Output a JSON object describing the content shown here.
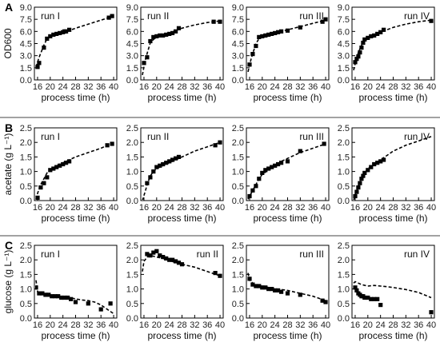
{
  "chart_data": [
    {
      "type": "scatter",
      "panel_letter": "A",
      "ylabel": "OD600",
      "xlabel": "process time (h)",
      "xlim": [
        15,
        41
      ],
      "ylim": [
        0,
        9
      ],
      "xticks": [
        16,
        20,
        24,
        28,
        32,
        36,
        40
      ],
      "yticks": [
        0,
        1.5,
        3,
        4.5,
        6,
        7.5,
        9
      ],
      "ytick_labels": [
        "0.0",
        "1.5",
        "3.0",
        "4.5",
        "6.0",
        "7.5",
        "9.0"
      ],
      "subplots": [
        {
          "title": "run I",
          "title_pos": "top-left",
          "measured": {
            "x": [
              16,
              16.5,
              18,
              19,
              20,
              21,
              22,
              23,
              24,
              24.5,
              25,
              26,
              38.5,
              39.5
            ],
            "y": [
              1.6,
              2.1,
              4.0,
              5.1,
              5.4,
              5.6,
              5.7,
              5.8,
              5.9,
              6.0,
              6.0,
              6.2,
              7.7,
              7.9
            ]
          },
          "model": {
            "x": [
              15.5,
              16.5,
              18,
              19,
              20,
              22,
              24,
              26,
              28,
              32,
              36,
              40
            ],
            "y": [
              1.6,
              2.8,
              4.3,
              5.1,
              5.4,
              5.6,
              5.8,
              6.1,
              6.4,
              6.9,
              7.4,
              7.9
            ]
          }
        },
        {
          "title": "run II",
          "title_pos": "top-left",
          "measured": {
            "x": [
              16,
              17,
              18,
              19,
              20,
              21,
              22,
              23,
              24,
              25,
              26,
              27,
              38,
              40
            ],
            "y": [
              2.1,
              2.8,
              4.8,
              5.3,
              5.4,
              5.5,
              5.5,
              5.6,
              5.7,
              5.8,
              6.0,
              6.4,
              7.2,
              7.2
            ]
          },
          "model": {
            "x": [
              15.5,
              16.5,
              18,
              19,
              20,
              22,
              24,
              26,
              28,
              32,
              36,
              40
            ],
            "y": [
              0.6,
              2.6,
              4.6,
              5.0,
              5.3,
              5.6,
              5.8,
              6.1,
              6.4,
              6.8,
              7.1,
              7.3
            ]
          }
        },
        {
          "title": "run III",
          "title_pos": "top-right",
          "measured": {
            "x": [
              16,
              17,
              18,
              19,
              20,
              21,
              22,
              23,
              24,
              25,
              26,
              28,
              32,
              39,
              40
            ],
            "y": [
              1.9,
              3.2,
              4.2,
              5.3,
              5.4,
              5.5,
              5.6,
              5.7,
              5.8,
              5.9,
              6.0,
              6.1,
              6.5,
              7.2,
              7.5
            ]
          },
          "model": {
            "x": [
              15.5,
              16.5,
              18,
              19,
              20,
              22,
              24,
              26,
              28,
              32,
              36,
              40
            ],
            "y": [
              1.0,
              2.6,
              4.5,
              5.1,
              5.4,
              5.6,
              5.8,
              6.0,
              6.2,
              6.6,
              7.0,
              7.4
            ]
          }
        },
        {
          "title": "run IV",
          "title_pos": "top-right",
          "measured": {
            "x": [
              16,
              16.5,
              17,
              17.5,
              18,
              18.5,
              19,
              20,
              21,
              22,
              23,
              24,
              25,
              40
            ],
            "y": [
              2.2,
              2.6,
              2.9,
              3.4,
              4.0,
              4.6,
              5.0,
              5.2,
              5.4,
              5.5,
              5.7,
              5.9,
              6.2,
              7.3
            ]
          },
          "model": {
            "x": [
              15.5,
              16,
              17,
              18,
              19,
              20,
              22,
              24,
              26,
              28,
              32,
              36,
              40
            ],
            "y": [
              1.2,
              2.0,
              3.4,
              4.3,
              4.8,
              5.2,
              5.6,
              5.9,
              6.2,
              6.5,
              6.9,
              7.2,
              7.4
            ]
          }
        }
      ]
    },
    {
      "type": "scatter",
      "panel_letter": "B",
      "ylabel": "acetate (g L⁻¹)",
      "xlabel": "process time (h)",
      "xlim": [
        15,
        41
      ],
      "ylim": [
        0,
        2.5
      ],
      "xticks": [
        16,
        20,
        24,
        28,
        32,
        36,
        40
      ],
      "yticks": [
        0,
        0.5,
        1,
        1.5,
        2,
        2.5
      ],
      "ytick_labels": [
        "0.0",
        "0.5",
        "1.0",
        "1.5",
        "2.0",
        "2.5"
      ],
      "subplots": [
        {
          "title": "run I",
          "title_pos": "top-left",
          "measured": {
            "x": [
              16,
              17,
              18,
              19,
              20,
              21,
              22,
              23,
              24,
              25,
              26,
              38,
              39.5
            ],
            "y": [
              0.1,
              0.45,
              0.6,
              0.8,
              1.05,
              1.1,
              1.15,
              1.2,
              1.25,
              1.3,
              1.35,
              1.9,
              1.95
            ]
          },
          "model": {
            "x": [
              15.5,
              16,
              17,
              18,
              19,
              20,
              22,
              24,
              26,
              28,
              32,
              36,
              40
            ],
            "y": [
              0.05,
              0.25,
              0.55,
              0.75,
              0.95,
              1.05,
              1.2,
              1.3,
              1.4,
              1.5,
              1.65,
              1.8,
              2.0
            ]
          }
        },
        {
          "title": "run II",
          "title_pos": "top-left",
          "measured": {
            "x": [
              17,
              18,
              19,
              20,
              21,
              22,
              23,
              24,
              25,
              26,
              27,
              38.5,
              40
            ],
            "y": [
              0.6,
              0.8,
              1.0,
              1.15,
              1.2,
              1.25,
              1.3,
              1.35,
              1.4,
              1.45,
              1.5,
              1.9,
              2.0
            ]
          },
          "model": {
            "x": [
              15.5,
              16.5,
              17,
              18,
              19,
              20,
              22,
              24,
              26,
              28,
              32,
              36,
              40
            ],
            "y": [
              0.0,
              0.35,
              0.55,
              0.85,
              1.0,
              1.1,
              1.2,
              1.3,
              1.4,
              1.5,
              1.7,
              1.85,
              2.0
            ]
          }
        },
        {
          "title": "run III",
          "title_pos": "top-right",
          "measured": {
            "x": [
              16,
              17,
              18,
              19,
              20,
              21,
              22,
              23,
              24,
              25,
              26,
              28,
              32,
              39.5
            ],
            "y": [
              0.15,
              0.35,
              0.5,
              0.75,
              0.95,
              1.05,
              1.1,
              1.15,
              1.2,
              1.25,
              1.3,
              1.35,
              1.7,
              1.95
            ]
          },
          "model": {
            "x": [
              15.5,
              16,
              17,
              18,
              19,
              20,
              22,
              24,
              26,
              28,
              32,
              36,
              40
            ],
            "y": [
              0.05,
              0.15,
              0.35,
              0.55,
              0.75,
              0.9,
              1.05,
              1.2,
              1.35,
              1.45,
              1.65,
              1.8,
              1.95
            ]
          }
        },
        {
          "title": "run IV",
          "title_pos": "top-right",
          "measured": {
            "x": [
              16,
              16.5,
              17,
              17.5,
              18,
              18.5,
              19,
              20,
              21,
              22,
              23,
              24,
              25
            ],
            "y": [
              0.15,
              0.3,
              0.45,
              0.6,
              0.75,
              0.85,
              0.95,
              1.05,
              1.15,
              1.25,
              1.3,
              1.35,
              1.4
            ]
          },
          "model": {
            "x": [
              15.5,
              16,
              17,
              18,
              19,
              20,
              22,
              24,
              26,
              28,
              32,
              36,
              40
            ],
            "y": [
              0.0,
              0.2,
              0.5,
              0.8,
              0.95,
              1.1,
              1.25,
              1.4,
              1.55,
              1.7,
              1.9,
              2.05,
              2.2
            ]
          }
        }
      ]
    },
    {
      "type": "scatter",
      "panel_letter": "C",
      "ylabel": "glucose (g L⁻¹)",
      "xlabel": "process time (h)",
      "xlim": [
        15,
        41
      ],
      "ylim": [
        0,
        2.5
      ],
      "xticks": [
        16,
        20,
        24,
        28,
        32,
        36,
        40
      ],
      "yticks": [
        0,
        0.5,
        1,
        1.5,
        2,
        2.5
      ],
      "ytick_labels": [
        "0.0",
        "0.5",
        "1.0",
        "1.5",
        "2.0",
        "2.5"
      ],
      "subplots": [
        {
          "title": "run I",
          "title_pos": "top-left",
          "measured": {
            "x": [
              15.5,
              16.5,
              17.5,
              18.5,
              19.5,
              20.5,
              21.5,
              22.5,
              23.5,
              24.5,
              25.5,
              26.5,
              28,
              32,
              36,
              39
            ],
            "y": [
              1.05,
              0.85,
              0.85,
              0.8,
              0.8,
              0.75,
              0.75,
              0.75,
              0.7,
              0.7,
              0.7,
              0.65,
              0.55,
              0.5,
              0.3,
              0.5
            ]
          },
          "model": {
            "x": [
              15.5,
              16,
              17,
              18,
              20,
              22,
              24,
              26,
              28,
              30,
              32,
              34,
              36,
              38,
              40
            ],
            "y": [
              1.3,
              0.9,
              0.85,
              0.8,
              0.78,
              0.75,
              0.72,
              0.7,
              0.66,
              0.62,
              0.6,
              0.55,
              0.45,
              0.3,
              0.15
            ]
          }
        },
        {
          "title": "run II",
          "title_pos": "top-right",
          "measured": {
            "x": [
              17,
              18,
              19,
              20,
              21,
              22,
              23,
              24,
              25,
              26,
              27,
              28,
              38.5,
              40
            ],
            "y": [
              2.2,
              2.15,
              2.25,
              2.3,
              2.15,
              2.1,
              2.05,
              2.0,
              2.0,
              1.95,
              1.9,
              1.85,
              1.55,
              1.45
            ]
          },
          "model": {
            "x": [
              15.5,
              16,
              17,
              18,
              20,
              22,
              24,
              26,
              28,
              32,
              36,
              40
            ],
            "y": [
              1.6,
              1.95,
              2.1,
              2.15,
              2.1,
              2.05,
              1.98,
              1.9,
              1.85,
              1.75,
              1.6,
              1.45
            ]
          }
        },
        {
          "title": "run III",
          "title_pos": "top-right",
          "measured": {
            "x": [
              16,
              17,
              18,
              19,
              20,
              21,
              22,
              23,
              24,
              25,
              26,
              28,
              32,
              39,
              40
            ],
            "y": [
              1.35,
              1.15,
              1.1,
              1.1,
              1.05,
              1.05,
              1.0,
              1.0,
              0.95,
              0.95,
              0.9,
              0.85,
              0.8,
              0.6,
              0.55
            ]
          },
          "model": {
            "x": [
              15.5,
              16,
              17,
              18,
              20,
              22,
              24,
              26,
              28,
              32,
              36,
              40
            ],
            "y": [
              1.55,
              1.3,
              1.2,
              1.15,
              1.1,
              1.05,
              1.0,
              0.98,
              0.95,
              0.85,
              0.75,
              0.6
            ]
          }
        },
        {
          "title": "run IV",
          "title_pos": "top-right",
          "measured": {
            "x": [
              16,
              16.5,
              17,
              17.5,
              18,
              18.5,
              19,
              20,
              21,
              22,
              23,
              24,
              40
            ],
            "y": [
              1.05,
              0.95,
              0.85,
              0.8,
              0.75,
              0.75,
              0.7,
              0.7,
              0.65,
              0.65,
              0.65,
              0.45,
              0.2
            ]
          },
          "model": {
            "x": [
              15.5,
              16,
              17,
              18,
              20,
              22,
              24,
              26,
              28,
              32,
              36,
              40
            ],
            "y": [
              1.2,
              1.25,
              1.2,
              1.15,
              1.1,
              1.12,
              1.1,
              1.08,
              1.05,
              0.98,
              0.88,
              0.7
            ]
          }
        }
      ]
    }
  ]
}
